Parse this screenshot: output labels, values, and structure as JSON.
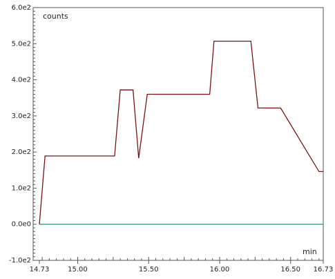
{
  "chart_data": {
    "type": "line",
    "title": "",
    "ylabel": "counts",
    "xlabel": "min",
    "xlim": [
      14.73,
      16.73
    ],
    "ylim": [
      -100,
      600
    ],
    "grid": false,
    "x_tick_labels": [
      {
        "value": 14.73,
        "label": "14.73"
      },
      {
        "value": 15.0,
        "label": "15.00"
      },
      {
        "value": 15.5,
        "label": "15.50"
      },
      {
        "value": 16.0,
        "label": "16.00"
      },
      {
        "value": 16.5,
        "label": "16.50"
      },
      {
        "value": 16.73,
        "label": "16.73"
      }
    ],
    "y_tick_labels": [
      {
        "value": 600,
        "label": "6.0e2"
      },
      {
        "value": 500,
        "label": "5.0e2"
      },
      {
        "value": 400,
        "label": "4.0e2"
      },
      {
        "value": 300,
        "label": "3.0e2"
      },
      {
        "value": 200,
        "label": "2.0e2"
      },
      {
        "value": 100,
        "label": "1.0e2"
      },
      {
        "value": 0,
        "label": "0.0e0"
      },
      {
        "value": -100,
        "label": "-1.0e2"
      }
    ],
    "series": [
      {
        "color": "#7a1111",
        "x": [
          14.73,
          14.77,
          15.26,
          15.3,
          15.39,
          15.43,
          15.49,
          15.65,
          15.93,
          15.96,
          16.22,
          16.27,
          16.43,
          16.7,
          16.73
        ],
        "y": [
          0,
          189,
          189,
          372,
          372,
          183,
          360,
          360,
          360,
          507,
          507,
          322,
          322,
          146,
          146
        ]
      },
      {
        "color": "#3f9a90",
        "x": [
          14.73,
          16.73
        ],
        "y": [
          0,
          0
        ]
      }
    ]
  }
}
